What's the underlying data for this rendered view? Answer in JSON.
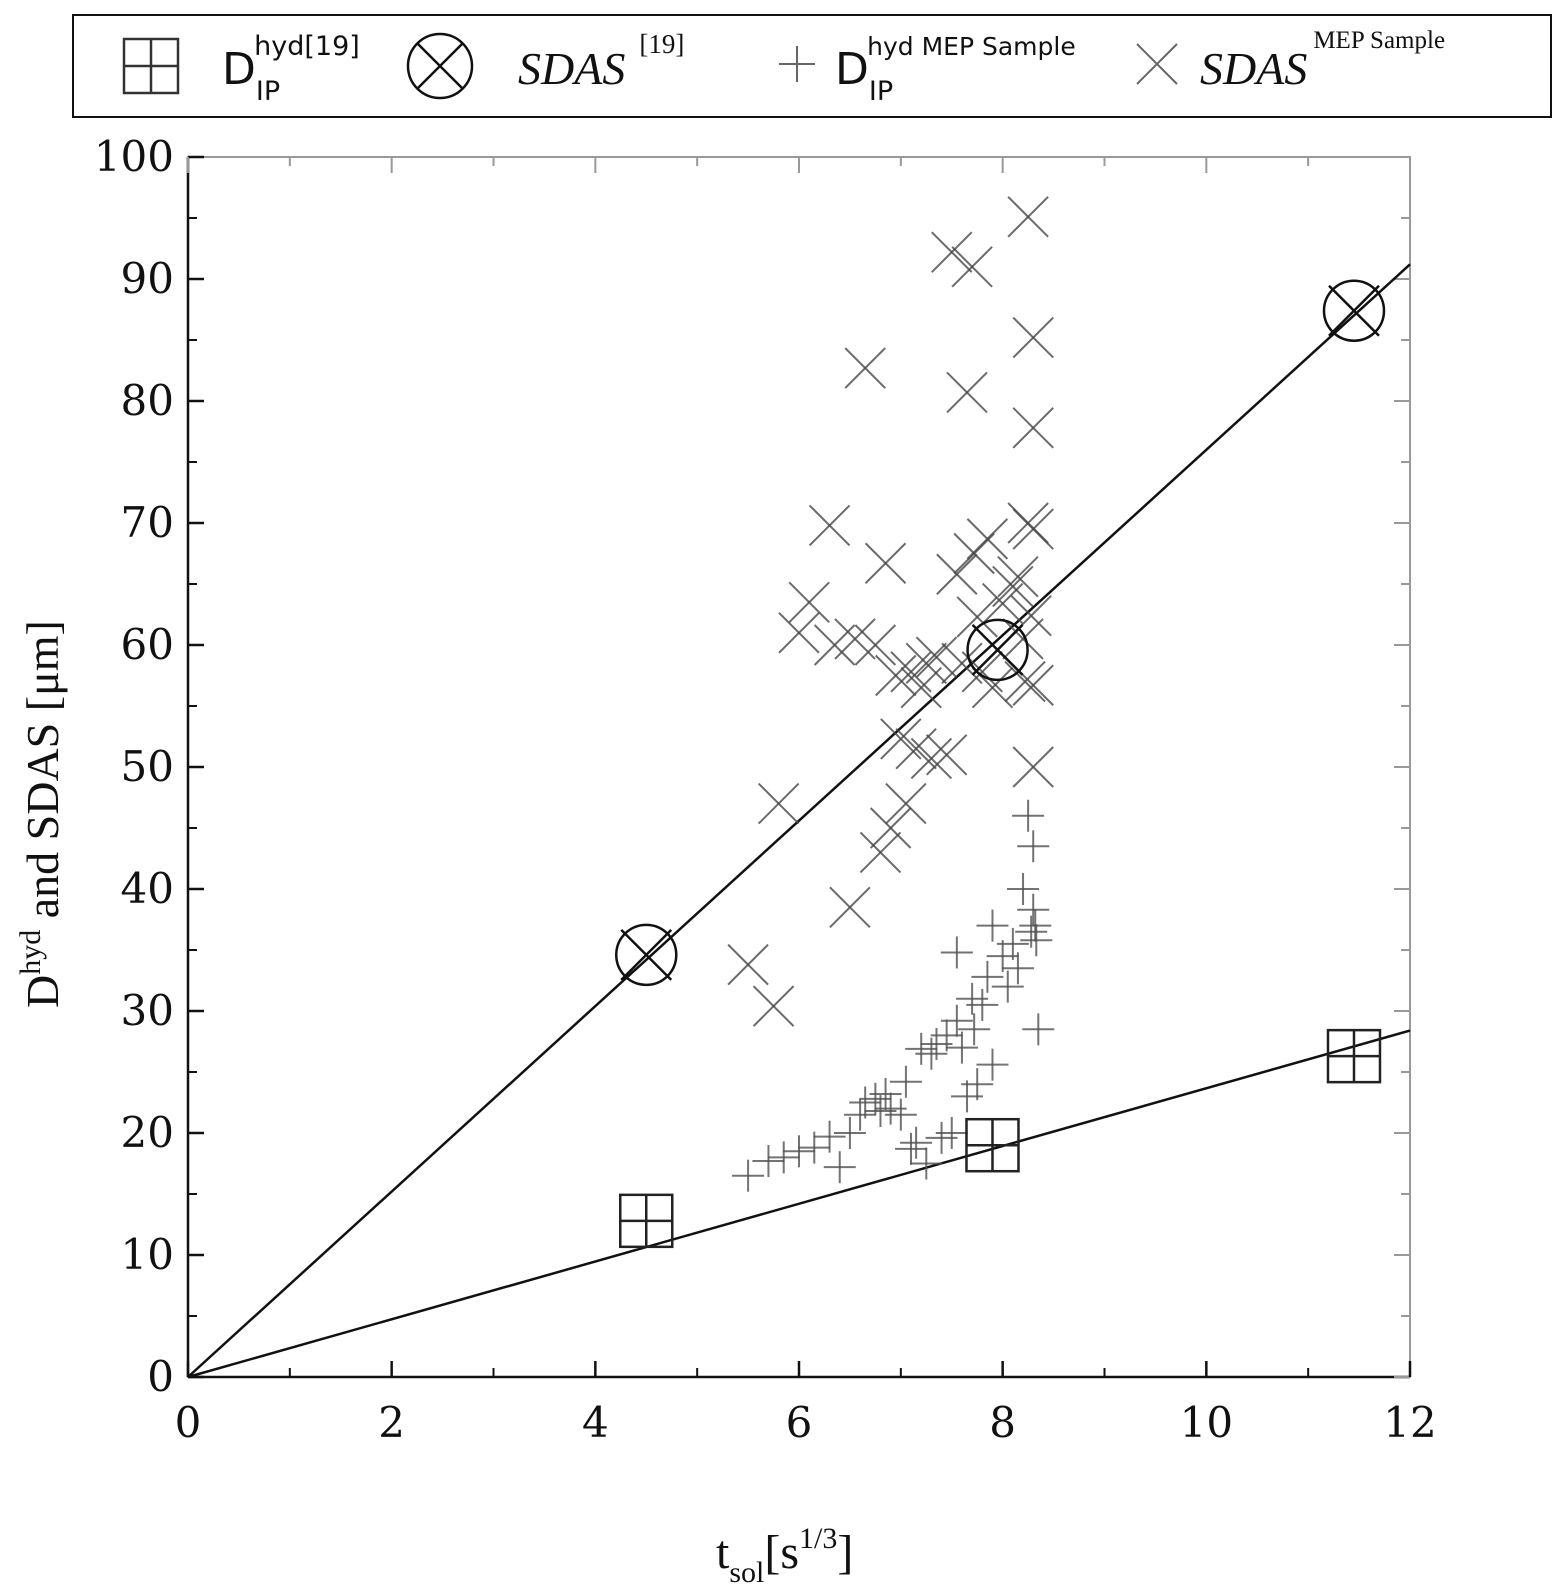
{
  "chart_data": {
    "type": "scatter",
    "xlabel": {
      "main": "t",
      "sub": "sol",
      "unit_open": "[s",
      "unit_sup": "1/3",
      "unit_close": "]"
    },
    "ylabel": {
      "main": "D",
      "sup": "hyd",
      "rest": " and SDAS [μm]"
    },
    "xlim": [
      0,
      12
    ],
    "ylim": [
      0,
      100
    ],
    "xticks": [
      0,
      2,
      4,
      6,
      8,
      10,
      12
    ],
    "yticks": [
      0,
      10,
      20,
      30,
      40,
      50,
      60,
      70,
      80,
      90,
      100
    ],
    "grid": false,
    "legend_position": "top",
    "legend": [
      {
        "marker": "square-plus",
        "main": "D",
        "sub": "IP",
        "sup": "hyd[19]"
      },
      {
        "marker": "circle-x",
        "main": "SDAS",
        "sup": "[19]"
      },
      {
        "marker": "plus",
        "main": "D",
        "sub": "IP",
        "sup": "hyd  MEP Sample"
      },
      {
        "marker": "x",
        "main": "SDAS",
        "sup": "MEP Sample"
      }
    ],
    "fit_lines": [
      {
        "name": "SDAS fit",
        "x": [
          0,
          12
        ],
        "y": [
          0,
          91.2
        ]
      },
      {
        "name": "Dhyd fit",
        "x": [
          0,
          12
        ],
        "y": [
          0,
          28.4
        ]
      }
    ],
    "series": [
      {
        "name": "Dhyd [19]",
        "marker": "square-plus",
        "points": [
          [
            4.5,
            12.8
          ],
          [
            7.9,
            19.0
          ],
          [
            11.45,
            26.3
          ]
        ]
      },
      {
        "name": "SDAS [19]",
        "marker": "circle-x",
        "points": [
          [
            4.5,
            34.6
          ],
          [
            7.95,
            59.6
          ],
          [
            11.45,
            87.4
          ]
        ]
      },
      {
        "name": "SDAS MEP Sample",
        "marker": "x",
        "points": [
          [
            5.5,
            33.8
          ],
          [
            5.75,
            30.4
          ],
          [
            5.8,
            47.0
          ],
          [
            6.0,
            61.0
          ],
          [
            6.1,
            63.5
          ],
          [
            6.3,
            69.8
          ],
          [
            6.35,
            60.0
          ],
          [
            6.5,
            38.5
          ],
          [
            6.55,
            60.5
          ],
          [
            6.65,
            82.7
          ],
          [
            6.75,
            60.0
          ],
          [
            6.8,
            43.0
          ],
          [
            6.85,
            66.7
          ],
          [
            6.9,
            45.0
          ],
          [
            6.95,
            57.5
          ],
          [
            7.0,
            52.3
          ],
          [
            7.05,
            47.0
          ],
          [
            7.1,
            57.8
          ],
          [
            7.15,
            51.5
          ],
          [
            7.2,
            56.5
          ],
          [
            7.25,
            58.5
          ],
          [
            7.3,
            50.7
          ],
          [
            7.35,
            59.0
          ],
          [
            7.45,
            51.0
          ],
          [
            7.5,
            92.2
          ],
          [
            7.55,
            65.8
          ],
          [
            7.6,
            58.5
          ],
          [
            7.65,
            80.7
          ],
          [
            7.7,
            91.0
          ],
          [
            7.72,
            67.5
          ],
          [
            7.75,
            62.3
          ],
          [
            7.8,
            57.8
          ],
          [
            7.85,
            68.7
          ],
          [
            7.9,
            56.5
          ],
          [
            8.0,
            63.4
          ],
          [
            8.1,
            64.8
          ],
          [
            8.15,
            65.6
          ],
          [
            8.2,
            60.5
          ],
          [
            8.22,
            57.0
          ],
          [
            8.25,
            95.1
          ],
          [
            8.25,
            70.0
          ],
          [
            8.28,
            62.4
          ],
          [
            8.3,
            85.2
          ],
          [
            8.3,
            77.8
          ],
          [
            8.3,
            69.5
          ],
          [
            8.3,
            56.7
          ],
          [
            8.3,
            50.0
          ]
        ]
      },
      {
        "name": "Dhyd MEP Sample",
        "marker": "plus",
        "points": [
          [
            5.5,
            16.5
          ],
          [
            5.7,
            17.7
          ],
          [
            5.85,
            18.0
          ],
          [
            6.0,
            18.5
          ],
          [
            6.15,
            18.8
          ],
          [
            6.3,
            19.7
          ],
          [
            6.4,
            17.2
          ],
          [
            6.5,
            20.0
          ],
          [
            6.6,
            21.5
          ],
          [
            6.65,
            22.5
          ],
          [
            6.75,
            22.8
          ],
          [
            6.8,
            21.8
          ],
          [
            6.85,
            23.2
          ],
          [
            6.9,
            22.0
          ],
          [
            7.0,
            21.5
          ],
          [
            7.05,
            24.2
          ],
          [
            7.1,
            18.7
          ],
          [
            7.15,
            19.2
          ],
          [
            7.2,
            26.9
          ],
          [
            7.25,
            17.5
          ],
          [
            7.3,
            26.5
          ],
          [
            7.35,
            27.3
          ],
          [
            7.4,
            19.6
          ],
          [
            7.45,
            28.0
          ],
          [
            7.5,
            20.0
          ],
          [
            7.55,
            29.2
          ],
          [
            7.55,
            34.8
          ],
          [
            7.6,
            27.0
          ],
          [
            7.65,
            23.0
          ],
          [
            7.7,
            31.0
          ],
          [
            7.72,
            28.5
          ],
          [
            7.75,
            24.0
          ],
          [
            7.8,
            30.5
          ],
          [
            7.85,
            32.8
          ],
          [
            7.9,
            37.0
          ],
          [
            7.9,
            25.6
          ],
          [
            8.0,
            34.5
          ],
          [
            8.05,
            32.0
          ],
          [
            8.1,
            35.5
          ],
          [
            8.15,
            33.5
          ],
          [
            8.2,
            40.0
          ],
          [
            8.25,
            46.0
          ],
          [
            8.28,
            36.5
          ],
          [
            8.3,
            43.5
          ],
          [
            8.3,
            38.3
          ],
          [
            8.32,
            37.0
          ],
          [
            8.33,
            35.8
          ],
          [
            8.35,
            28.5
          ]
        ]
      }
    ]
  }
}
